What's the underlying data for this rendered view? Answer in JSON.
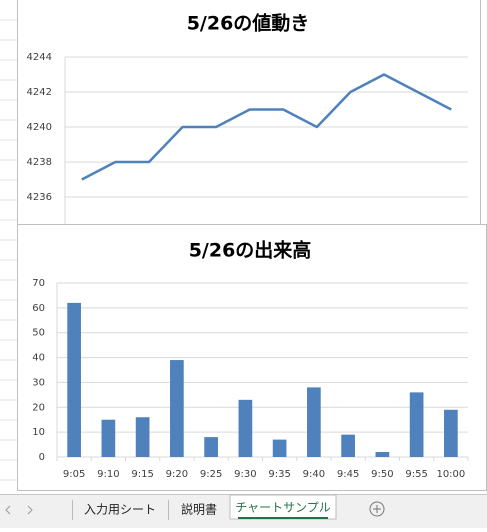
{
  "chart_data": [
    {
      "type": "line",
      "title": "5/26の値動き",
      "color": "#4f81bd",
      "values": [
        4237,
        4238,
        4238,
        4240,
        4240,
        4241,
        4241,
        4240,
        4242,
        4243,
        4242,
        4241
      ],
      "ylim": [
        4234,
        4244
      ],
      "yticks": [
        4236,
        4238,
        4240,
        4242,
        4244
      ],
      "grid": true
    },
    {
      "type": "bar",
      "title": "5/26の出来高",
      "color": "#4f81bd",
      "categories": [
        "9:05",
        "9:10",
        "9:15",
        "9:20",
        "9:25",
        "9:30",
        "9:35",
        "9:40",
        "9:45",
        "9:50",
        "9:55",
        "10:00"
      ],
      "values": [
        62,
        15,
        16,
        39,
        8,
        23,
        7,
        28,
        9,
        2,
        26,
        19
      ],
      "ylim": [
        0,
        70
      ],
      "yticks": [
        0,
        10,
        20,
        30,
        40,
        50,
        60,
        70
      ],
      "grid": true
    }
  ],
  "tabs": [
    "入力用シート",
    "説明書",
    "チャートサンプル"
  ]
}
